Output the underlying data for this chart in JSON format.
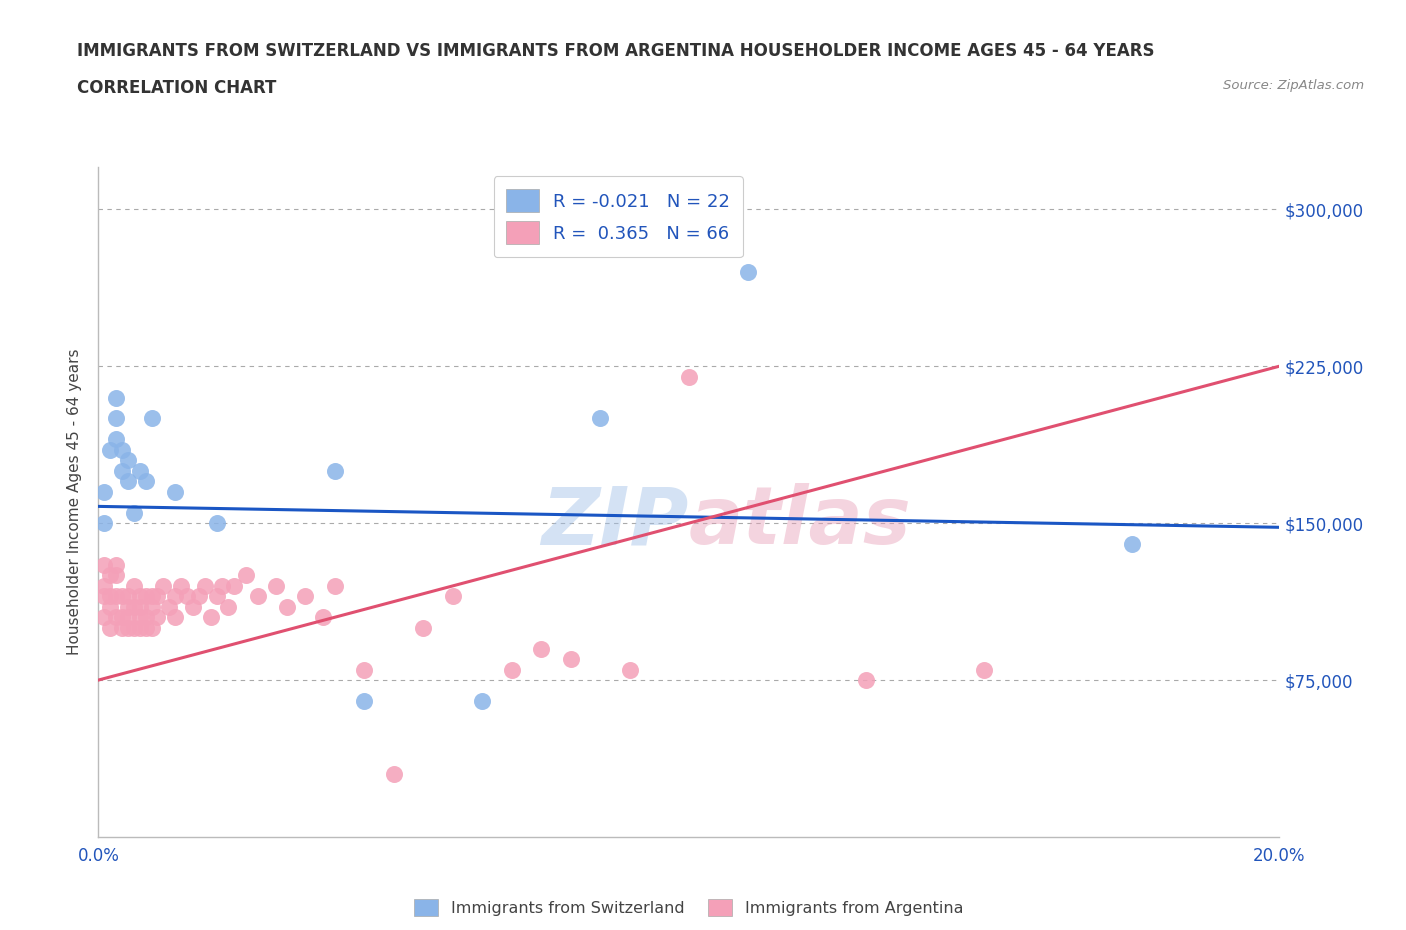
{
  "title1": "IMMIGRANTS FROM SWITZERLAND VS IMMIGRANTS FROM ARGENTINA HOUSEHOLDER INCOME AGES 45 - 64 YEARS",
  "title2": "CORRELATION CHART",
  "ylabel": "Householder Income Ages 45 - 64 years",
  "source_text": "Source: ZipAtlas.com",
  "xlim": [
    0.0,
    0.2
  ],
  "ylim": [
    0,
    320000
  ],
  "yticks": [
    0,
    75000,
    150000,
    225000,
    300000
  ],
  "ytick_labels": [
    "",
    "$75,000",
    "$150,000",
    "$225,000",
    "$300,000"
  ],
  "xticks": [
    0.0,
    0.025,
    0.05,
    0.075,
    0.1,
    0.125,
    0.15,
    0.175,
    0.2
  ],
  "swiss_color": "#8ab4e8",
  "argentina_color": "#f4a0b8",
  "swiss_line_color": "#1a56c4",
  "argentina_line_color": "#e05070",
  "R_swiss": -0.021,
  "N_swiss": 22,
  "R_argentina": 0.365,
  "N_argentina": 66,
  "watermark_zip": "ZIP",
  "watermark_atlas": "atlas",
  "background_color": "#ffffff",
  "grid_color": "#aaaaaa",
  "swiss_scatter_x": [
    0.001,
    0.001,
    0.002,
    0.003,
    0.003,
    0.003,
    0.004,
    0.004,
    0.005,
    0.005,
    0.006,
    0.007,
    0.008,
    0.009,
    0.013,
    0.02,
    0.04,
    0.045,
    0.065,
    0.085,
    0.11,
    0.175
  ],
  "swiss_scatter_y": [
    150000,
    165000,
    185000,
    190000,
    200000,
    210000,
    185000,
    175000,
    170000,
    180000,
    155000,
    175000,
    170000,
    200000,
    165000,
    150000,
    175000,
    65000,
    65000,
    200000,
    270000,
    140000
  ],
  "argentina_scatter_x": [
    0.001,
    0.001,
    0.001,
    0.001,
    0.002,
    0.002,
    0.002,
    0.002,
    0.003,
    0.003,
    0.003,
    0.003,
    0.004,
    0.004,
    0.004,
    0.005,
    0.005,
    0.005,
    0.005,
    0.006,
    0.006,
    0.006,
    0.007,
    0.007,
    0.007,
    0.007,
    0.008,
    0.008,
    0.008,
    0.009,
    0.009,
    0.009,
    0.01,
    0.01,
    0.011,
    0.012,
    0.013,
    0.013,
    0.014,
    0.015,
    0.016,
    0.017,
    0.018,
    0.019,
    0.02,
    0.021,
    0.022,
    0.023,
    0.025,
    0.027,
    0.03,
    0.032,
    0.035,
    0.038,
    0.04,
    0.045,
    0.05,
    0.055,
    0.06,
    0.07,
    0.075,
    0.08,
    0.09,
    0.1,
    0.13,
    0.15
  ],
  "argentina_scatter_y": [
    105000,
    120000,
    130000,
    115000,
    110000,
    100000,
    115000,
    125000,
    105000,
    115000,
    125000,
    130000,
    100000,
    115000,
    105000,
    110000,
    100000,
    115000,
    105000,
    110000,
    100000,
    120000,
    105000,
    115000,
    100000,
    110000,
    115000,
    105000,
    100000,
    110000,
    100000,
    115000,
    105000,
    115000,
    120000,
    110000,
    115000,
    105000,
    120000,
    115000,
    110000,
    115000,
    120000,
    105000,
    115000,
    120000,
    110000,
    120000,
    125000,
    115000,
    120000,
    110000,
    115000,
    105000,
    120000,
    80000,
    30000,
    100000,
    115000,
    80000,
    90000,
    85000,
    80000,
    220000,
    75000,
    80000
  ],
  "swiss_line_x0": 0.0,
  "swiss_line_x1": 0.2,
  "swiss_line_y0": 158000,
  "swiss_line_y1": 148000,
  "arg_line_x0": 0.0,
  "arg_line_x1": 0.2,
  "arg_line_y0": 75000,
  "arg_line_y1": 225000
}
